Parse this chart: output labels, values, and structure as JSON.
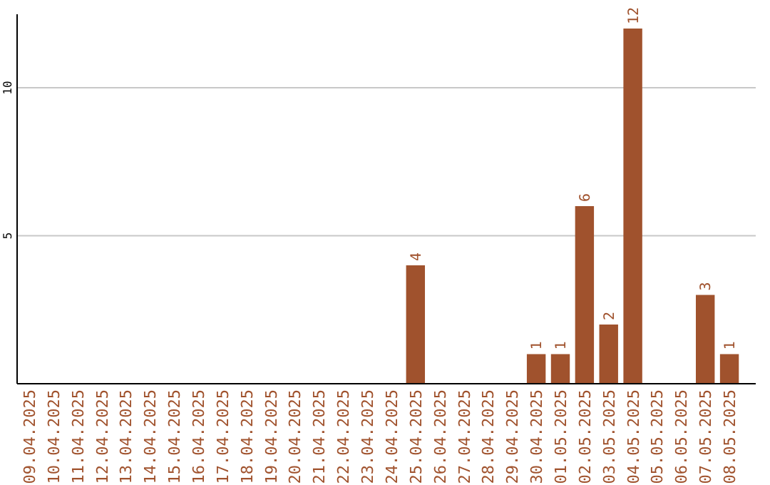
{
  "chart_data": {
    "type": "bar",
    "categories": [
      "09.04.2025",
      "10.04.2025",
      "11.04.2025",
      "12.04.2025",
      "13.04.2025",
      "14.04.2025",
      "15.04.2025",
      "16.04.2025",
      "17.04.2025",
      "18.04.2025",
      "19.04.2025",
      "20.04.2025",
      "21.04.2025",
      "22.04.2025",
      "23.04.2025",
      "24.04.2025",
      "25.04.2025",
      "26.04.2025",
      "27.04.2025",
      "28.04.2025",
      "29.04.2025",
      "30.04.2025",
      "01.05.2025",
      "02.05.2025",
      "03.05.2025",
      "04.05.2025",
      "05.05.2025",
      "06.05.2025",
      "07.05.2025",
      "08.05.2025"
    ],
    "values": [
      0,
      0,
      0,
      0,
      0,
      0,
      0,
      0,
      0,
      0,
      0,
      0,
      0,
      0,
      0,
      0,
      4,
      0,
      0,
      0,
      0,
      1,
      1,
      6,
      2,
      12,
      0,
      0,
      3,
      1
    ],
    "value_labels": [
      null,
      null,
      null,
      null,
      null,
      null,
      null,
      null,
      null,
      null,
      null,
      null,
      null,
      null,
      null,
      null,
      "4",
      null,
      null,
      null,
      null,
      "1",
      "1",
      "6",
      "2",
      "12",
      null,
      null,
      "3",
      "1"
    ],
    "color": "#a0522d",
    "ylim": [
      0,
      12
    ],
    "yticks": [
      5,
      10
    ],
    "grid": "y"
  }
}
